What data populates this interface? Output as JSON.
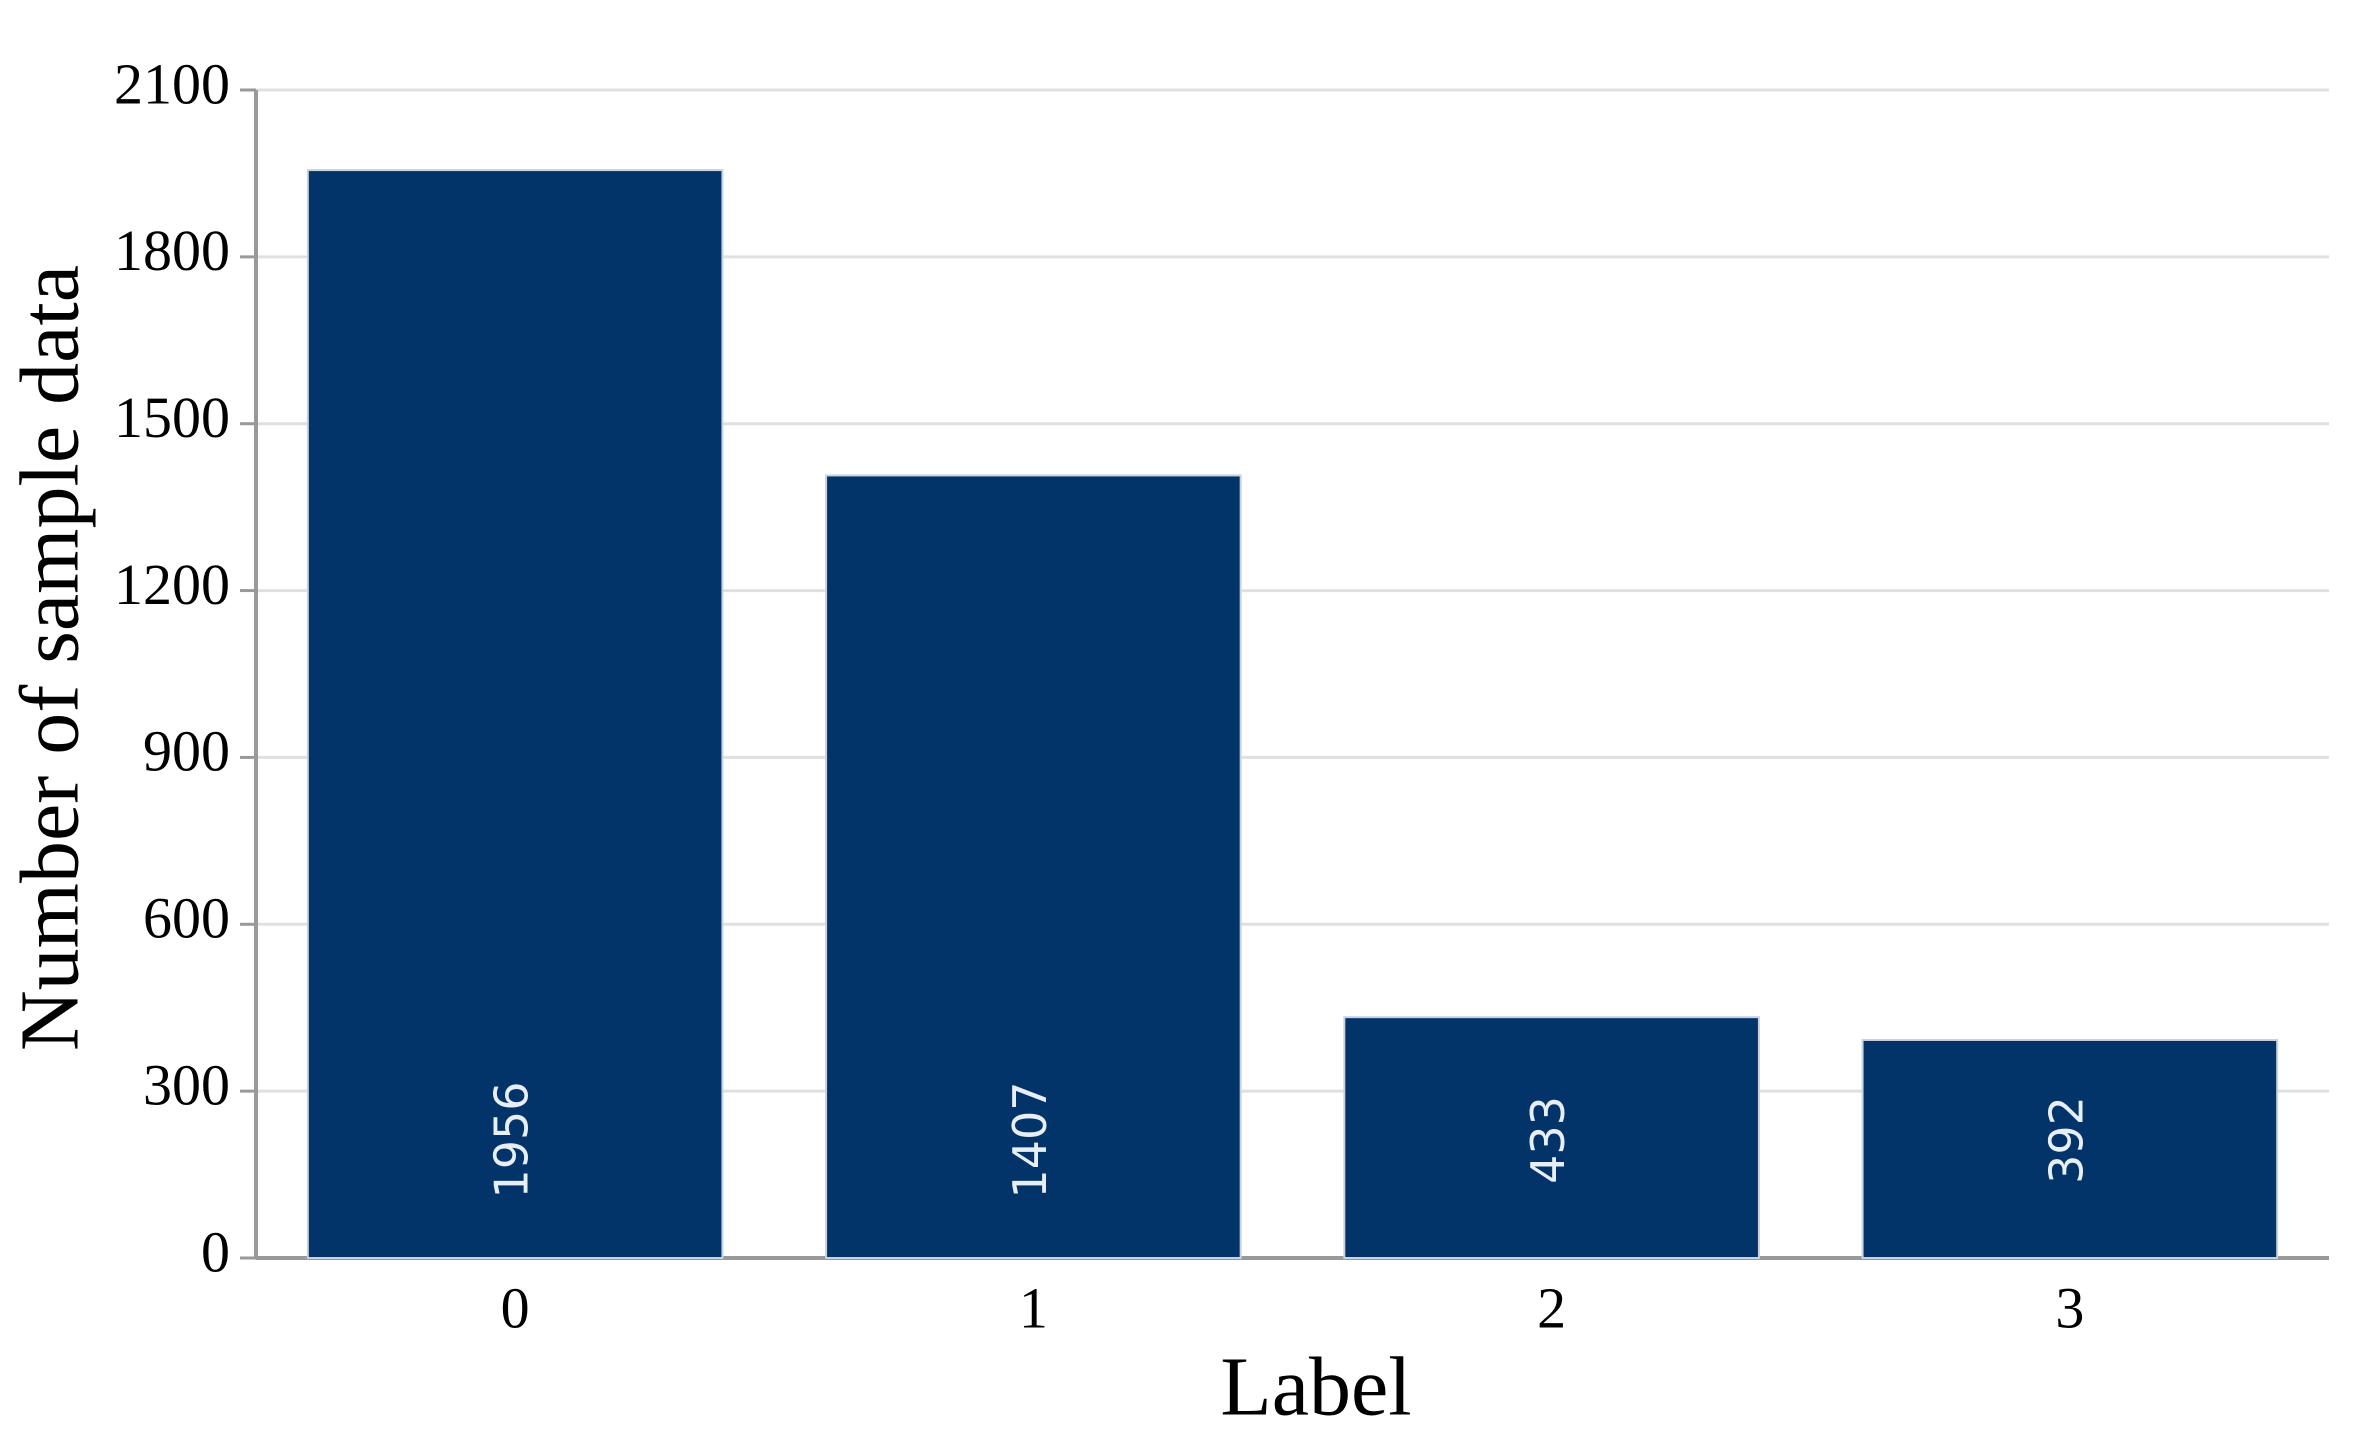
{
  "chart_data": {
    "type": "bar",
    "xlabel": "Label",
    "ylabel": "Number of sample data",
    "categories": [
      "0",
      "1",
      "2",
      "3"
    ],
    "values": [
      1956,
      1407,
      433,
      392
    ],
    "color": "#02346a",
    "ylim": [
      0,
      2100
    ],
    "yticks": [
      0,
      300,
      600,
      900,
      1200,
      1500,
      1800,
      2100
    ],
    "grid": true
  }
}
